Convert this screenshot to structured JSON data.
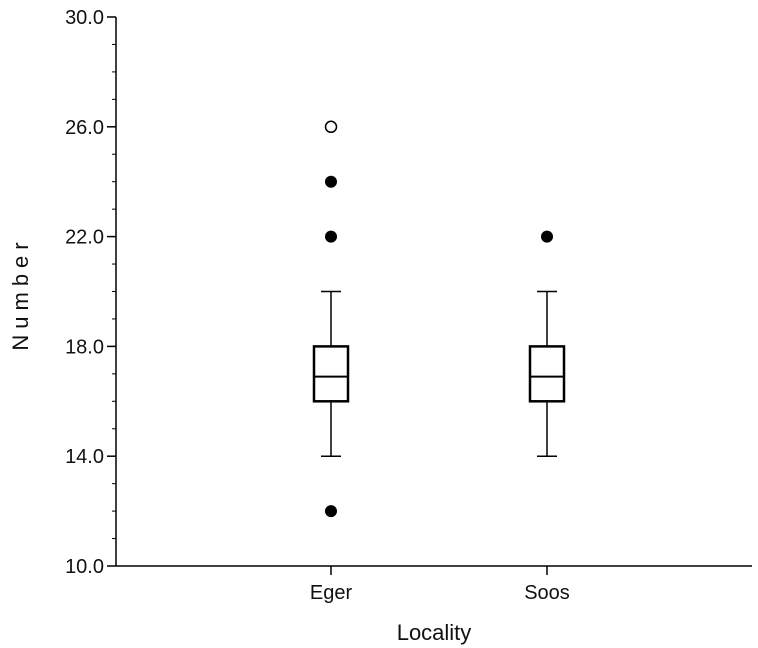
{
  "chart_data": {
    "type": "boxplot",
    "title": "",
    "xlabel": "Locality",
    "ylabel": "Number",
    "ylim": [
      10,
      30
    ],
    "yticks": [
      10,
      14,
      18,
      22,
      26,
      30
    ],
    "ytick_labels": [
      "10.0",
      "14.0",
      "18.0",
      "22.0",
      "26.0",
      "30.0"
    ],
    "minor_tick_step": 1,
    "grid": false,
    "categories": [
      "Eger",
      "Soos"
    ],
    "boxes": [
      {
        "category": "Eger",
        "whisker_low": 14,
        "q1": 16,
        "median": 16.9,
        "q3": 18,
        "whisker_high": 20,
        "outliers": [
          12,
          22,
          24
        ],
        "extremes": [
          26
        ]
      },
      {
        "category": "Soos",
        "whisker_low": 14,
        "q1": 16,
        "median": 16.9,
        "q3": 18,
        "whisker_high": 20,
        "outliers": [
          22
        ],
        "extremes": []
      }
    ]
  }
}
